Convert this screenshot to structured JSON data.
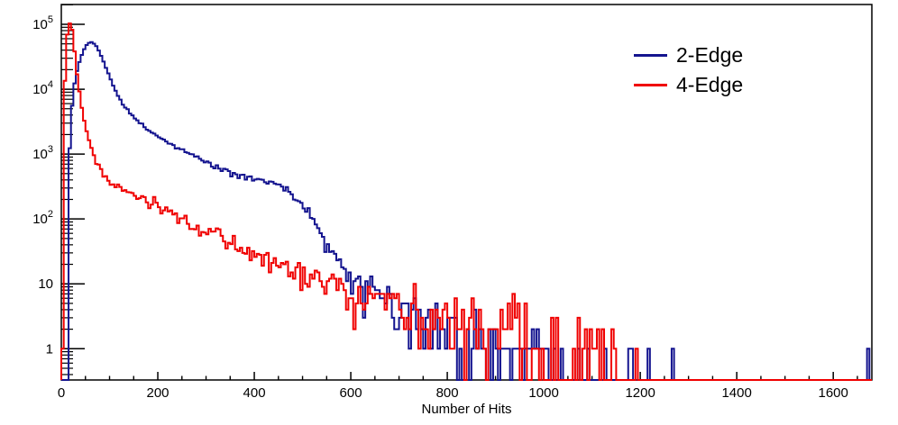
{
  "figure": {
    "x_axis_title": "Number of Hits"
  },
  "legend": {
    "position": "top-right",
    "items": [
      {
        "label": "2-Edge",
        "color": "#14148f"
      },
      {
        "label": "4-Edge",
        "color": "#f00000"
      }
    ]
  },
  "chart_data": {
    "type": "line",
    "subtype": "step-histogram",
    "title": "",
    "xlabel": "Number of Hits",
    "ylabel": "",
    "x_scale": "linear",
    "y_scale": "log",
    "grid": false,
    "legend_position": "top-right",
    "xlim": [
      0,
      1680
    ],
    "ylim": [
      0.33,
      202000
    ],
    "x_major_ticks": [
      0,
      200,
      400,
      600,
      800,
      1000,
      1200,
      1400,
      1600
    ],
    "x_minor_step": 50,
    "y_decade_labels": [
      {
        "base": "10",
        "exp": "5",
        "value": 100000
      },
      {
        "base": "10",
        "exp": "4",
        "value": 10000
      },
      {
        "base": "10",
        "exp": "3",
        "value": 1000
      },
      {
        "base": "10",
        "exp": "2",
        "value": 100
      },
      {
        "base": "10",
        "exp": "",
        "value": 10
      },
      {
        "base": "1",
        "exp": "",
        "value": 1
      }
    ],
    "bin_width": 5,
    "noise": {
      "seed": 20,
      "lognormal_k": 1.35,
      "poisson_below": 50
    },
    "series": [
      {
        "name": "2-Edge",
        "color": "#14148f",
        "anchors": [
          [
            12,
            0.0005
          ],
          [
            15,
            350
          ],
          [
            19,
            2800
          ],
          [
            25,
            9500
          ],
          [
            30,
            16000
          ],
          [
            35,
            23000
          ],
          [
            40,
            30000
          ],
          [
            45,
            38000
          ],
          [
            50,
            45000
          ],
          [
            55,
            50000
          ],
          [
            60,
            53000
          ],
          [
            65,
            52500
          ],
          [
            70,
            49000
          ],
          [
            75,
            43000
          ],
          [
            80,
            36000
          ],
          [
            85,
            29500
          ],
          [
            90,
            24000
          ],
          [
            95,
            19500
          ],
          [
            100,
            15500
          ],
          [
            107,
            11500
          ],
          [
            115,
            8600
          ],
          [
            125,
            6400
          ],
          [
            135,
            5000
          ],
          [
            150,
            3700
          ],
          [
            165,
            2900
          ],
          [
            180,
            2350
          ],
          [
            200,
            1850
          ],
          [
            220,
            1520
          ],
          [
            240,
            1280
          ],
          [
            260,
            1070
          ],
          [
            280,
            900
          ],
          [
            300,
            760
          ],
          [
            320,
            640
          ],
          [
            340,
            545
          ],
          [
            360,
            470
          ],
          [
            380,
            425
          ],
          [
            400,
            405
          ],
          [
            415,
            395
          ],
          [
            430,
            375
          ],
          [
            445,
            340
          ],
          [
            460,
            295
          ],
          [
            475,
            245
          ],
          [
            490,
            192
          ],
          [
            505,
            142
          ],
          [
            520,
            98
          ],
          [
            535,
            62
          ],
          [
            550,
            40
          ],
          [
            565,
            28
          ],
          [
            580,
            21
          ],
          [
            600,
            14
          ],
          [
            620,
            11
          ],
          [
            640,
            9
          ],
          [
            660,
            7.2
          ],
          [
            680,
            5.8
          ],
          [
            700,
            4.8
          ],
          [
            725,
            3.9
          ],
          [
            750,
            3.4
          ],
          [
            775,
            2.8
          ],
          [
            800,
            2.4
          ],
          [
            830,
            1.9
          ],
          [
            860,
            1.5
          ],
          [
            890,
            1.2
          ],
          [
            920,
            0.95
          ],
          [
            950,
            0.8
          ],
          [
            980,
            0.65
          ],
          [
            1010,
            0.5
          ],
          [
            1040,
            0.4
          ],
          [
            1070,
            0.3
          ],
          [
            1100,
            0.22
          ],
          [
            1130,
            0.15
          ],
          [
            1160,
            0.1
          ],
          [
            1200,
            0.03
          ],
          [
            1300,
            0.004
          ],
          [
            1680,
            0.002
          ]
        ],
        "spikes": [
          [
            1183,
            1
          ],
          [
            1216,
            1
          ],
          [
            1266,
            1
          ],
          [
            1670,
            1
          ]
        ]
      },
      {
        "name": "4-Edge",
        "color": "#f00000",
        "anchors": [
          [
            3,
            2
          ],
          [
            6,
            6000
          ],
          [
            10,
            50000
          ],
          [
            14,
            85000
          ],
          [
            17,
            103000
          ],
          [
            21,
            100000
          ],
          [
            25,
            60000
          ],
          [
            28,
            35000
          ],
          [
            32,
            18000
          ],
          [
            36,
            10500
          ],
          [
            40,
            7000
          ],
          [
            45,
            4200
          ],
          [
            50,
            2800
          ],
          [
            55,
            1900
          ],
          [
            60,
            1350
          ],
          [
            67,
            950
          ],
          [
            75,
            700
          ],
          [
            85,
            520
          ],
          [
            95,
            400
          ],
          [
            105,
            330
          ],
          [
            120,
            290
          ],
          [
            140,
            252
          ],
          [
            160,
            215
          ],
          [
            180,
            182
          ],
          [
            200,
            152
          ],
          [
            225,
            122
          ],
          [
            250,
            98
          ],
          [
            280,
            76
          ],
          [
            310,
            59
          ],
          [
            340,
            46
          ],
          [
            370,
            37
          ],
          [
            400,
            30
          ],
          [
            440,
            23
          ],
          [
            480,
            17.5
          ],
          [
            520,
            13.5
          ],
          [
            560,
            10.5
          ],
          [
            600,
            8.2
          ],
          [
            650,
            6.2
          ],
          [
            700,
            4.8
          ],
          [
            750,
            3.7
          ],
          [
            800,
            2.9
          ],
          [
            850,
            2.3
          ],
          [
            900,
            1.9
          ],
          [
            950,
            1.6
          ],
          [
            1000,
            1.4
          ],
          [
            1050,
            1.25
          ],
          [
            1085,
            1.0
          ],
          [
            1115,
            0.75
          ],
          [
            1145,
            0.45
          ],
          [
            1170,
            0.25
          ],
          [
            1185,
            0.08
          ],
          [
            1250,
            0.01
          ],
          [
            1680,
            0.005
          ]
        ],
        "spikes": []
      }
    ]
  }
}
